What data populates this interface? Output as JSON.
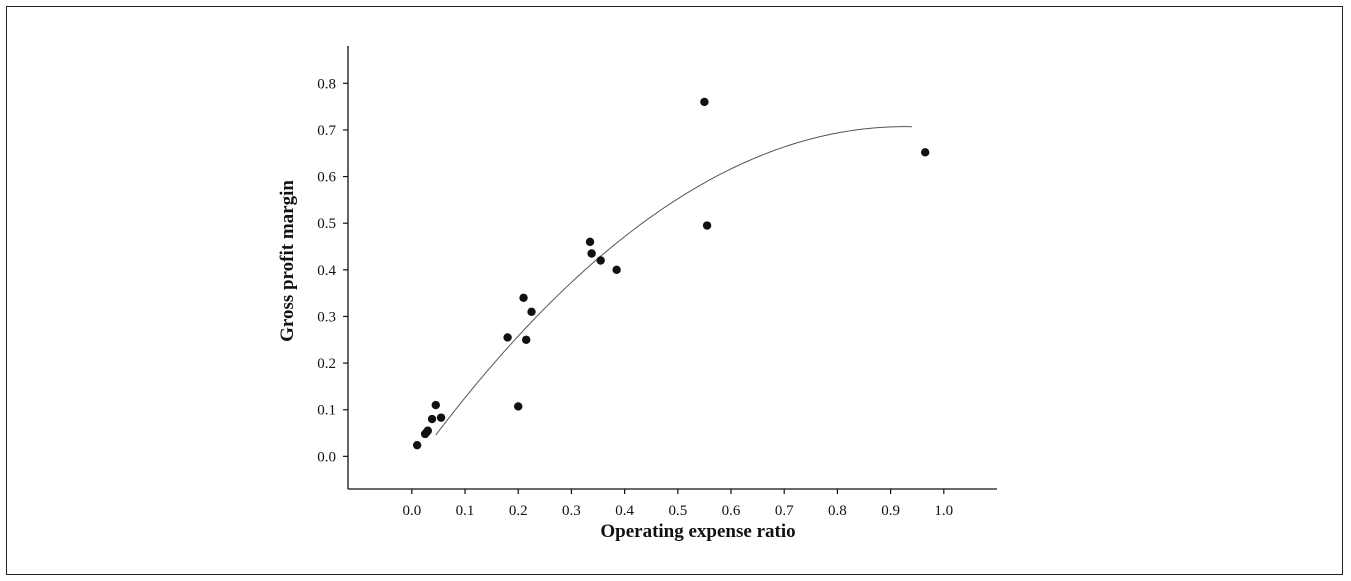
{
  "chart_data": {
    "type": "scatter",
    "title": "",
    "xlabel": "Operating expense ratio",
    "ylabel": "Gross profit margin",
    "xlim": [
      -0.12,
      1.1
    ],
    "ylim": [
      -0.07,
      0.88
    ],
    "x_ticks": [
      "0.0",
      "0.1",
      "0.2",
      "0.3",
      "0.4",
      "0.5",
      "0.6",
      "0.7",
      "0.8",
      "0.9",
      "1.0"
    ],
    "y_ticks": [
      "0.0",
      "0.1",
      "0.2",
      "0.3",
      "0.4",
      "0.5",
      "0.6",
      "0.7",
      "0.8"
    ],
    "grid": false,
    "legend": "none",
    "marker_color": "#111111",
    "line_color": "#555555",
    "series": [
      {
        "points": [
          [
            0.01,
            0.024
          ],
          [
            0.025,
            0.048
          ],
          [
            0.028,
            0.052
          ],
          [
            0.03,
            0.055
          ],
          [
            0.038,
            0.08
          ],
          [
            0.045,
            0.11
          ],
          [
            0.055,
            0.083
          ],
          [
            0.18,
            0.255
          ],
          [
            0.2,
            0.107
          ],
          [
            0.21,
            0.34
          ],
          [
            0.215,
            0.25
          ],
          [
            0.225,
            0.31
          ],
          [
            0.335,
            0.46
          ],
          [
            0.338,
            0.435
          ],
          [
            0.355,
            0.42
          ],
          [
            0.385,
            0.4
          ],
          [
            0.55,
            0.76
          ],
          [
            0.555,
            0.495
          ],
          [
            0.965,
            0.652
          ]
        ]
      }
    ],
    "trend_curve": {
      "type": "quadratic",
      "coefficients": [
        -0.0236,
        1.578,
        -0.852
      ],
      "x_range": [
        0.045,
        0.94
      ]
    }
  }
}
